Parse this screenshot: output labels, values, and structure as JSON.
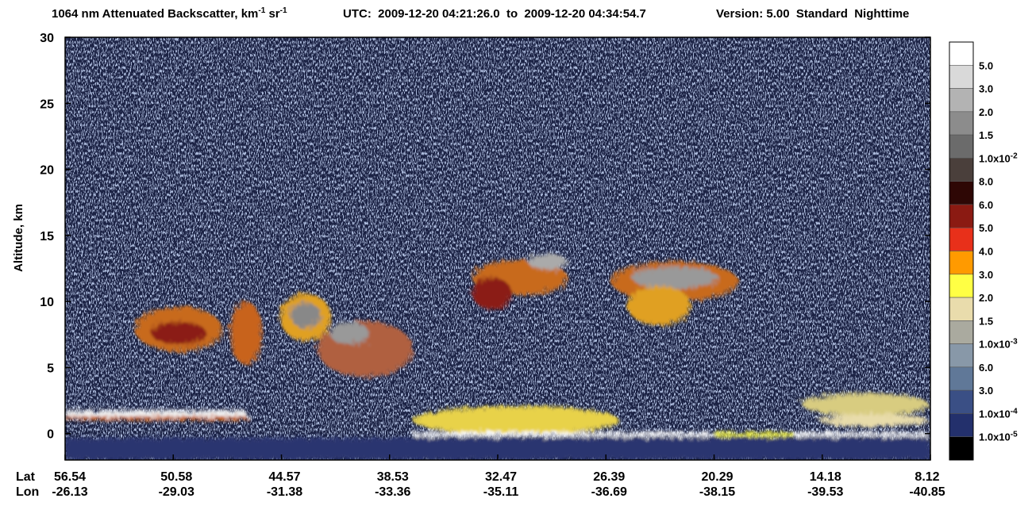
{
  "chart_data": {
    "type": "profile",
    "title": [
      "1064 nm Attenuated Backscatter, km",
      "-1",
      " sr",
      "-1",
      "UTC:  2009-12-20 04:21:26.0  to  2009-12-20 04:34:54.7",
      "Version: 5.00  Standard  Nighttime"
    ],
    "y_label": "Altitude, km",
    "ylim": [
      -2,
      30
    ],
    "yticks": [
      0,
      5,
      10,
      15,
      20,
      25,
      30
    ],
    "x_rows": [
      "Lat",
      "Lon"
    ],
    "lat": [
      "56.54",
      "50.58",
      "44.57",
      "38.53",
      "32.47",
      "26.39",
      "20.29",
      "14.18",
      "8.12"
    ],
    "lon": [
      "-26.13",
      "-29.03",
      "-31.38",
      "-33.36",
      "-35.11",
      "-36.69",
      "-38.15",
      "-39.53",
      "-40.85"
    ],
    "colorbar": {
      "colors": [
        "#ffffff",
        "#d9d9d9",
        "#b3b3b3",
        "#8c8c8c",
        "#6b6b6b",
        "#4a3f3b",
        "#2e0705",
        "#8b1a12",
        "#e8301a",
        "#ff9a00",
        "#ffff44",
        "#e9dcac",
        "#aaaa9f",
        "#8898a8",
        "#607898",
        "#3a4f85",
        "#23306c",
        "#000000"
      ],
      "labels": [
        "5.0",
        "3.0",
        "2.0",
        "1.5",
        {
          "text": "1.0x10",
          "sup": "-2"
        },
        "8.0",
        "6.0",
        "5.0",
        "4.0",
        "3.0",
        "2.0",
        "1.5",
        {
          "text": "1.0x10",
          "sup": "-3"
        },
        "6.0",
        "3.0",
        {
          "text": "1.0x10",
          "sup": "-4"
        },
        {
          "text": "1.0x10",
          "sup": "-5"
        }
      ]
    }
  }
}
